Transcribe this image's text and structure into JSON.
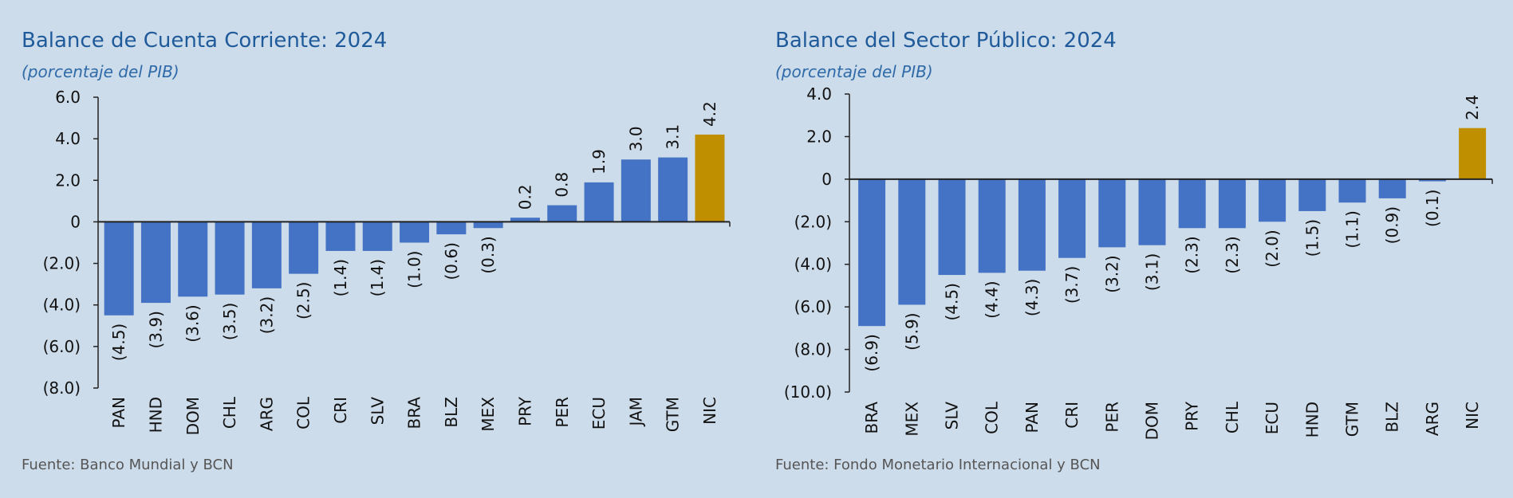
{
  "colors": {
    "background": "#cddcea",
    "bar": "#4472c4",
    "highlight": "#bf8f00",
    "title": "#1f5a9a"
  },
  "chart_data": [
    {
      "type": "bar",
      "title": "Balance de Cuenta Corriente: 2024",
      "subtitle": "(porcentaje del PIB)",
      "source": "Fuente: Banco Mundial y BCN",
      "categories": [
        "PAN",
        "HND",
        "DOM",
        "CHL",
        "ARG",
        "COL",
        "CRI",
        "SLV",
        "BRA",
        "BLZ",
        "MEX",
        "PRY",
        "PER",
        "ECU",
        "JAM",
        "GTM",
        "NIC"
      ],
      "values": [
        -4.5,
        -3.9,
        -3.6,
        -3.5,
        -3.2,
        -2.5,
        -1.4,
        -1.4,
        -1.0,
        -0.6,
        -0.3,
        0.2,
        0.8,
        1.9,
        3.0,
        3.1,
        4.2
      ],
      "value_labels": [
        "(4.5)",
        "(3.9)",
        "(3.6)",
        "(3.5)",
        "(3.2)",
        "(2.5)",
        "(1.4)",
        "(1.4)",
        "(1.0)",
        "(0.6)",
        "(0.3)",
        "0.2",
        "0.8",
        "1.9",
        "3.0",
        "3.1",
        "4.2"
      ],
      "highlight": "NIC",
      "ylim": [
        -8,
        6
      ],
      "yticks": [
        6,
        4,
        2,
        0,
        -2,
        -4,
        -6,
        -8
      ],
      "ytick_labels": [
        "6.0",
        "4.0",
        "2.0",
        "0",
        "(2.0)",
        "(4.0)",
        "(6.0)",
        "(8.0)"
      ],
      "xlabel": "",
      "ylabel": "",
      "grid": false
    },
    {
      "type": "bar",
      "title": "Balance del Sector Público: 2024",
      "subtitle": "(porcentaje del PIB)",
      "source": "Fuente: Fondo Monetario Internacional y BCN",
      "categories": [
        "BRA",
        "MEX",
        "SLV",
        "COL",
        "PAN",
        "CRI",
        "PER",
        "DOM",
        "PRY",
        "CHL",
        "ECU",
        "HND",
        "GTM",
        "BLZ",
        "ARG",
        "NIC"
      ],
      "values": [
        -6.9,
        -5.9,
        -4.5,
        -4.4,
        -4.3,
        -3.7,
        -3.2,
        -3.1,
        -2.3,
        -2.3,
        -2.0,
        -1.5,
        -1.1,
        -0.9,
        -0.1,
        2.4
      ],
      "value_labels": [
        "(6.9)",
        "(5.9)",
        "(4.5)",
        "(4.4)",
        "(4.3)",
        "(3.7)",
        "(3.2)",
        "(3.1)",
        "(2.3)",
        "(2.3)",
        "(2.0)",
        "(1.5)",
        "(1.1)",
        "(0.9)",
        "(0.1)",
        "2.4"
      ],
      "highlight": "NIC",
      "ylim": [
        -10,
        4
      ],
      "yticks": [
        4,
        2,
        0,
        -2,
        -4,
        -6,
        -8,
        -10
      ],
      "ytick_labels": [
        "4.0",
        "2.0",
        "0",
        "(2.0)",
        "(4.0)",
        "(6.0)",
        "(8.0)",
        "(10.0)"
      ],
      "xlabel": "",
      "ylabel": "",
      "grid": false
    }
  ]
}
